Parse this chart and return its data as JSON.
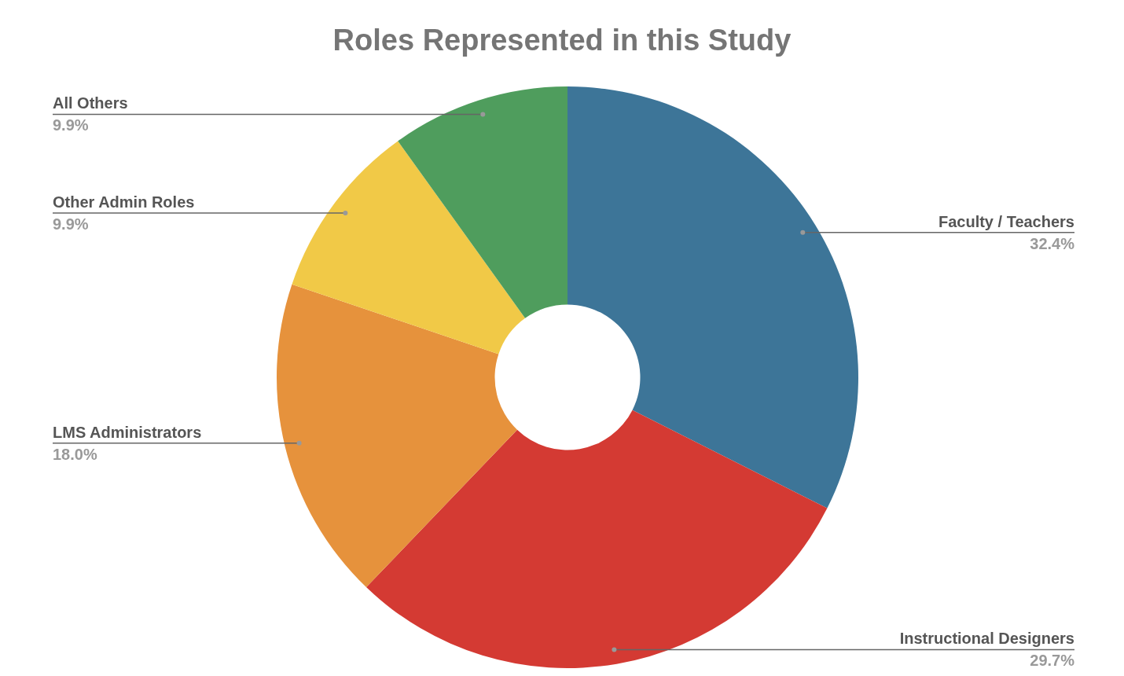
{
  "chart_data": {
    "type": "donut",
    "title": "Roles Represented in this Study",
    "categories": [
      "Faculty / Teachers",
      "Instructional Designers",
      "LMS Administrators",
      "Other Admin Roles",
      "All Others"
    ],
    "values": [
      32.4,
      29.7,
      18.0,
      9.9,
      9.9
    ],
    "value_labels": [
      "32.4%",
      "29.7%",
      "18.0%",
      "9.9%",
      "9.9%"
    ],
    "colors": [
      "#3d7598",
      "#d43a33",
      "#e6923c",
      "#f1c947",
      "#4f9d5d"
    ]
  }
}
